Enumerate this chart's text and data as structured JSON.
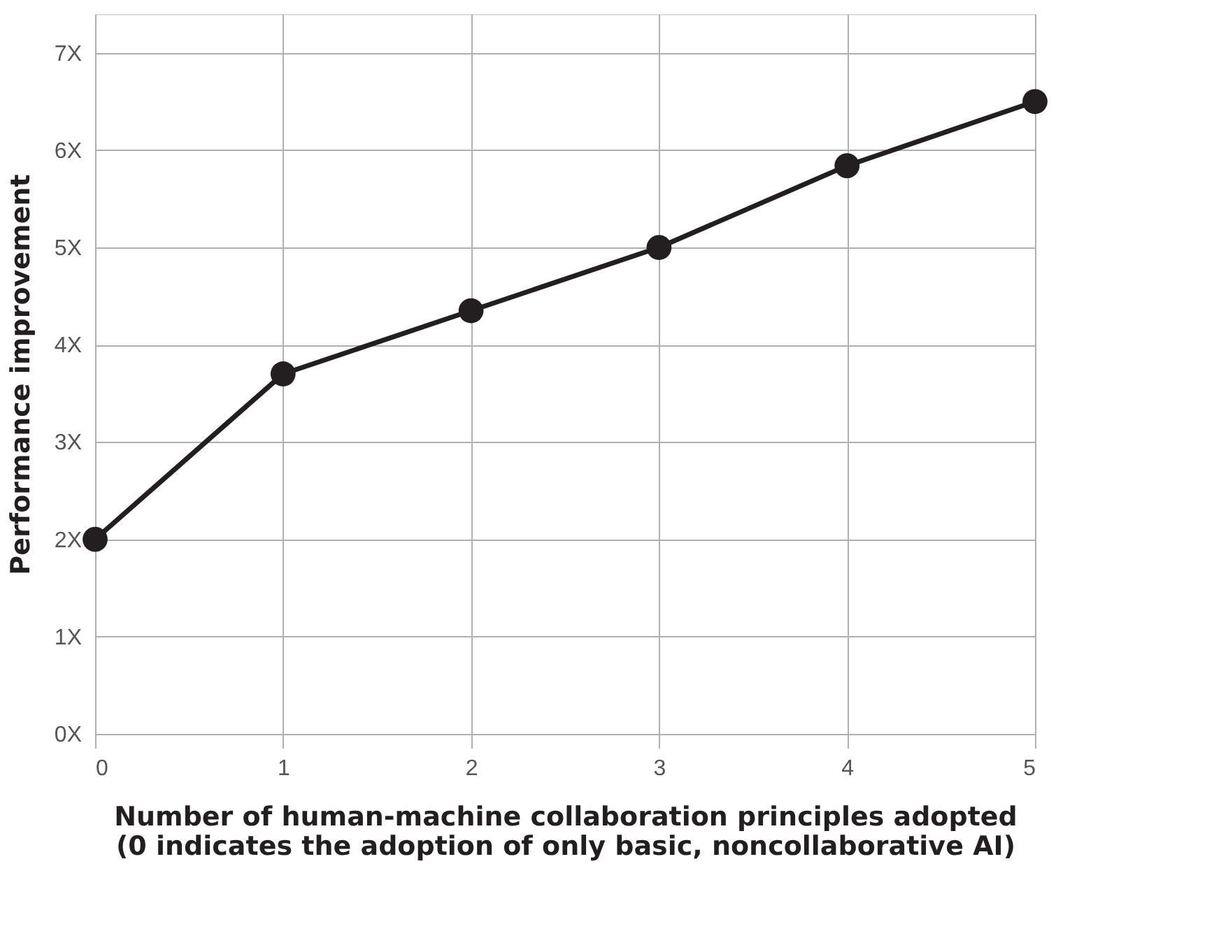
{
  "chart_data": {
    "type": "line",
    "x": [
      0,
      1,
      2,
      3,
      4,
      5
    ],
    "series": [
      {
        "color": "#231f20",
        "values": [
          2.0,
          3.7,
          4.35,
          5.0,
          5.84,
          6.5
        ]
      }
    ],
    "xlim": [
      0,
      5
    ],
    "xticks": [
      0,
      1,
      2,
      3,
      4,
      5
    ],
    "ylim": [
      0,
      7.4
    ],
    "yticks": [
      {
        "value": 0,
        "label": "0X"
      },
      {
        "value": 1,
        "label": "1X"
      },
      {
        "value": 2,
        "label": "2X"
      },
      {
        "value": 3,
        "label": "3X"
      },
      {
        "value": 4,
        "label": "4X"
      },
      {
        "value": 5,
        "label": "5X"
      },
      {
        "value": 6,
        "label": "6X"
      },
      {
        "value": 7,
        "label": "7X"
      }
    ],
    "xlabel": "Number of human-machine collaboration principles adopted\n(0 indicates the adoption of only basic, noncollaborative AI)",
    "ylabel": "Performance improvement",
    "grid": true,
    "marker": "circle",
    "line_style": "solid"
  }
}
